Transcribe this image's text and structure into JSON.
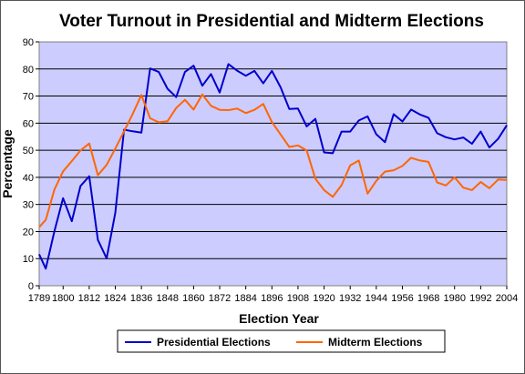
{
  "chart_data": {
    "type": "line",
    "title": "Voter Turnout in Presidential and Midterm Elections",
    "xlabel": "Election Year",
    "ylabel": "Percentage",
    "ylim": [
      0,
      90
    ],
    "xlim": [
      1789,
      2004
    ],
    "yticks": [
      0,
      10,
      20,
      30,
      40,
      50,
      60,
      70,
      80,
      90
    ],
    "xticks": [
      1789,
      1800,
      1812,
      1824,
      1836,
      1848,
      1860,
      1872,
      1884,
      1896,
      1908,
      1920,
      1932,
      1944,
      1956,
      1968,
      1980,
      1992,
      2004
    ],
    "grid": "horizontal",
    "legend": "bottom",
    "plot_background": "#ccccff",
    "series": [
      {
        "name": "Presidential Elections",
        "color": "#0000cc",
        "x": [
          1789,
          1792,
          1796,
          1800,
          1804,
          1808,
          1812,
          1816,
          1820,
          1824,
          1828,
          1832,
          1836,
          1840,
          1844,
          1848,
          1852,
          1856,
          1860,
          1864,
          1868,
          1872,
          1876,
          1880,
          1884,
          1888,
          1892,
          1896,
          1900,
          1904,
          1908,
          1912,
          1916,
          1920,
          1924,
          1928,
          1932,
          1936,
          1940,
          1944,
          1948,
          1952,
          1956,
          1960,
          1964,
          1968,
          1972,
          1976,
          1980,
          1984,
          1988,
          1992,
          1996,
          2000,
          2004
        ],
        "y": [
          11.6,
          6.3,
          20.1,
          32.3,
          23.8,
          36.8,
          40.4,
          16.9,
          10.1,
          26.9,
          57.6,
          57.0,
          56.5,
          80.2,
          78.9,
          72.7,
          69.6,
          78.9,
          81.2,
          73.8,
          78.1,
          71.3,
          81.8,
          79.4,
          77.5,
          79.3,
          74.7,
          79.3,
          73.2,
          65.2,
          65.4,
          58.8,
          61.6,
          49.2,
          48.9,
          56.9,
          56.9,
          61.0,
          62.5,
          55.9,
          53.0,
          63.3,
          60.6,
          65.0,
          63.2,
          62.0,
          56.3,
          54.8,
          54.0,
          54.7,
          52.4,
          56.9,
          51.0,
          54.2,
          59.2
        ]
      },
      {
        "name": "Midterm Elections",
        "color": "#ff6600",
        "x": [
          1789,
          1792,
          1796,
          1800,
          1804,
          1808,
          1812,
          1816,
          1820,
          1824,
          1828,
          1832,
          1836,
          1840,
          1844,
          1848,
          1852,
          1856,
          1860,
          1864,
          1868,
          1872,
          1876,
          1880,
          1884,
          1888,
          1892,
          1896,
          1900,
          1904,
          1908,
          1912,
          1916,
          1920,
          1924,
          1928,
          1932,
          1936,
          1940,
          1944,
          1948,
          1952,
          1956,
          1960,
          1964,
          1968,
          1972,
          1976,
          1980,
          1984,
          1988,
          1992,
          1996,
          2000,
          2004
        ],
        "y": [
          21.6,
          24.3,
          35.5,
          42.2,
          46.0,
          49.9,
          52.5,
          40.8,
          44.6,
          50.6,
          57.0,
          63.4,
          70.4,
          61.8,
          60.3,
          60.7,
          65.6,
          68.6,
          65.0,
          70.6,
          66.4,
          64.9,
          64.8,
          65.4,
          63.7,
          64.9,
          67.1,
          60.4,
          55.8,
          51.2,
          51.8,
          49.9,
          39.5,
          35.3,
          32.8,
          37.1,
          44.4,
          46.2,
          34.0,
          38.7,
          42.1,
          42.6,
          44.2,
          47.2,
          46.2,
          45.7,
          38.1,
          37.0,
          40.0,
          36.2,
          35.3,
          38.3,
          36.0,
          39.2,
          39.0
        ]
      }
    ]
  }
}
